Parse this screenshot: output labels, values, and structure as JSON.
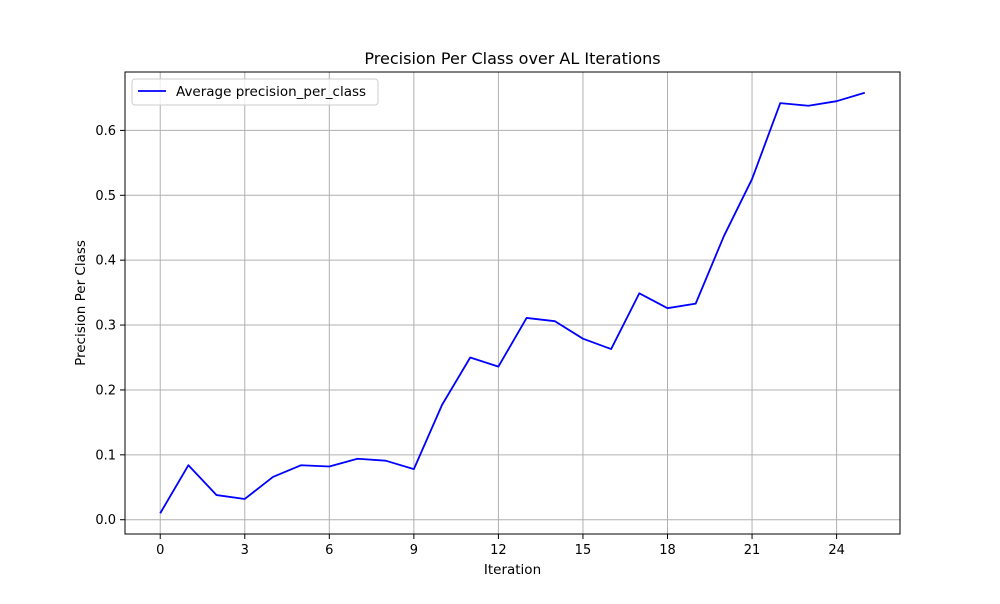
{
  "chart_data": {
    "type": "line",
    "title": "Precision Per Class over AL Iterations",
    "xlabel": "Iteration",
    "ylabel": "Precision Per Class",
    "xlim": [
      -1.25,
      26.25
    ],
    "ylim": [
      -0.022,
      0.69
    ],
    "xticks": [
      0,
      3,
      6,
      9,
      12,
      15,
      18,
      21,
      24
    ],
    "yticks": [
      0.0,
      0.1,
      0.2,
      0.3,
      0.4,
      0.5,
      0.6
    ],
    "ytick_labels": [
      "0.0",
      "0.1",
      "0.2",
      "0.3",
      "0.4",
      "0.5",
      "0.6"
    ],
    "grid": true,
    "legend_position": "top-left",
    "series": [
      {
        "name": "Average precision_per_class",
        "color": "#0000ff",
        "x": [
          0,
          1,
          2,
          3,
          4,
          5,
          6,
          7,
          8,
          9,
          10,
          11,
          12,
          13,
          14,
          15,
          16,
          17,
          18,
          19,
          20,
          21,
          22,
          23,
          24,
          25
        ],
        "values": [
          0.01,
          0.084,
          0.038,
          0.032,
          0.066,
          0.084,
          0.082,
          0.094,
          0.091,
          0.078,
          0.177,
          0.25,
          0.236,
          0.311,
          0.306,
          0.279,
          0.263,
          0.349,
          0.326,
          0.333,
          0.437,
          0.525,
          0.642,
          0.638,
          0.645,
          0.658
        ]
      }
    ]
  }
}
